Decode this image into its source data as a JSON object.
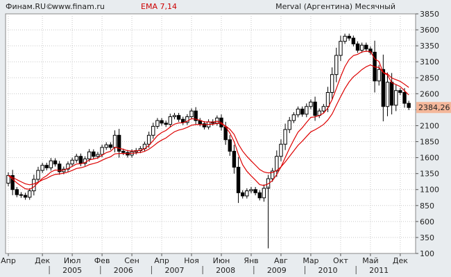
{
  "header": {
    "brand": "Финам.RU©",
    "site": "www.finam.ru",
    "indicator": "EMA 7,14",
    "title": "Merval (Аргентина) Месячный"
  },
  "last_price_label": "2384,26",
  "colors": {
    "ema": "#dd0000",
    "candle": "#000000",
    "price_box": "#f4b79a",
    "plot_bg": "#ffffff",
    "frame_bg": "#e8ecef"
  },
  "chart_data": {
    "type": "candlestick",
    "title": "Merval (Аргентина) Месячный",
    "indicator": "EMA 7,14",
    "ylim": [
      100,
      3850
    ],
    "yticks": [
      3850,
      3600,
      3350,
      3100,
      2850,
      2600,
      2350,
      2100,
      1850,
      1600,
      1350,
      1100,
      850,
      600,
      350,
      100
    ],
    "x_month_labels": [
      {
        "label": "Апр",
        "index": 0
      },
      {
        "label": "Дек",
        "index": 8
      },
      {
        "label": "Июл",
        "index": 15
      },
      {
        "label": "Фев",
        "index": 22
      },
      {
        "label": "Сен",
        "index": 29
      },
      {
        "label": "Апр",
        "index": 36
      },
      {
        "label": "Ноя",
        "index": 43
      },
      {
        "label": "Июн",
        "index": 50
      },
      {
        "label": "Янв",
        "index": 57
      },
      {
        "label": "Авг",
        "index": 64
      },
      {
        "label": "Мар",
        "index": 71
      },
      {
        "label": "Окт",
        "index": 78
      },
      {
        "label": "Май",
        "index": 85
      },
      {
        "label": "Дек",
        "index": 92
      }
    ],
    "x_year_labels": [
      {
        "label": "2005",
        "index": 15
      },
      {
        "label": "2006",
        "index": 27
      },
      {
        "label": "2007",
        "index": 39
      },
      {
        "label": "2008",
        "index": 51
      },
      {
        "label": "2009",
        "index": 63
      },
      {
        "label": "2010",
        "index": 75
      },
      {
        "label": "2011",
        "index": 87
      }
    ],
    "closes": [
      1320,
      1100,
      1020,
      1010,
      980,
      1080,
      1260,
      1400,
      1480,
      1440,
      1550,
      1500,
      1380,
      1420,
      1500,
      1560,
      1620,
      1510,
      1580,
      1690,
      1620,
      1650,
      1760,
      1800,
      1760,
      1950,
      1700,
      1680,
      1640,
      1690,
      1710,
      1740,
      1810,
      1950,
      2090,
      2180,
      2140,
      2120,
      2240,
      2260,
      2200,
      2150,
      2240,
      2330,
      2180,
      2130,
      2080,
      2160,
      2140,
      2220,
      2080,
      1880,
      1700,
      1450,
      1050,
      1000,
      1080,
      1100,
      1050,
      970,
      1120,
      1270,
      1390,
      1620,
      1810,
      2040,
      2180,
      2270,
      2360,
      2280,
      2400,
      2470,
      2260,
      2330,
      2400,
      2620,
      2900,
      3200,
      3420,
      3500,
      3470,
      3380,
      3280,
      3360,
      3300,
      3250,
      2800,
      2980,
      2400,
      2780,
      2420,
      2650,
      2620,
      2450,
      2384.26
    ],
    "series": [
      {
        "name": "EMA 7",
        "values": [
          1320,
          1265,
          1204,
          1156,
          1112,
          1104,
          1143,
          1207,
          1276,
          1317,
          1375,
          1406,
          1400,
          1405,
          1429,
          1462,
          1501,
          1503,
          1522,
          1564,
          1578,
          1596,
          1637,
          1678,
          1699,
          1762,
          1746,
          1730,
          1708,
          1703,
          1705,
          1714,
          1738,
          1791,
          1866,
          1944,
          1993,
          2025,
          2079,
          2124,
          2143,
          2145,
          2169,
          2209,
          2202,
          2184,
          2158,
          2159,
          2154,
          2170,
          2148,
          2081,
          1985,
          1851,
          1651,
          1488,
          1386,
          1315,
          1248,
          1178,
          1164,
          1190,
          1240,
          1335,
          1454,
          1601,
          1746,
          1877,
          1998,
          2068,
          2151,
          2230,
          2237,
          2260,
          2295,
          2376,
          2507,
          2680,
          2865,
          3024,
          3135,
          3196,
          3217,
          3253,
          3265,
          3261,
          3146,
          3105,
          2929,
          2892,
          2774,
          2743,
          2712,
          2646,
          2581
        ]
      },
      {
        "name": "EMA 14",
        "values": [
          1320,
          1291,
          1255,
          1222,
          1190,
          1175,
          1188,
          1216,
          1251,
          1276,
          1312,
          1337,
          1345,
          1355,
          1374,
          1400,
          1430,
          1441,
          1459,
          1490,
          1507,
          1526,
          1558,
          1590,
          1613,
          1659,
          1664,
          1666,
          1663,
          1667,
          1672,
          1681,
          1698,
          1731,
          1779,
          1833,
          1874,
          1907,
          1958,
          2005,
          2031,
          2047,
          2073,
          2107,
          2117,
          2119,
          2114,
          2120,
          2123,
          2136,
          2129,
          2096,
          2043,
          1964,
          1811,
          1702,
          1619,
          1549,
          1482,
          1414,
          1375,
          1361,
          1365,
          1399,
          1454,
          1532,
          1619,
          1705,
          1792,
          1858,
          1931,
          2003,
          2036,
          2075,
          2119,
          2188,
          2283,
          2419,
          2553,
          2680,
          2785,
          2864,
          2919,
          2978,
          3022,
          3052,
          3018,
          3013,
          2931,
          2911,
          2846,
          2820,
          2793,
          2748,
          2698
        ]
      }
    ],
    "grid": true,
    "last_value": 2384.26
  }
}
